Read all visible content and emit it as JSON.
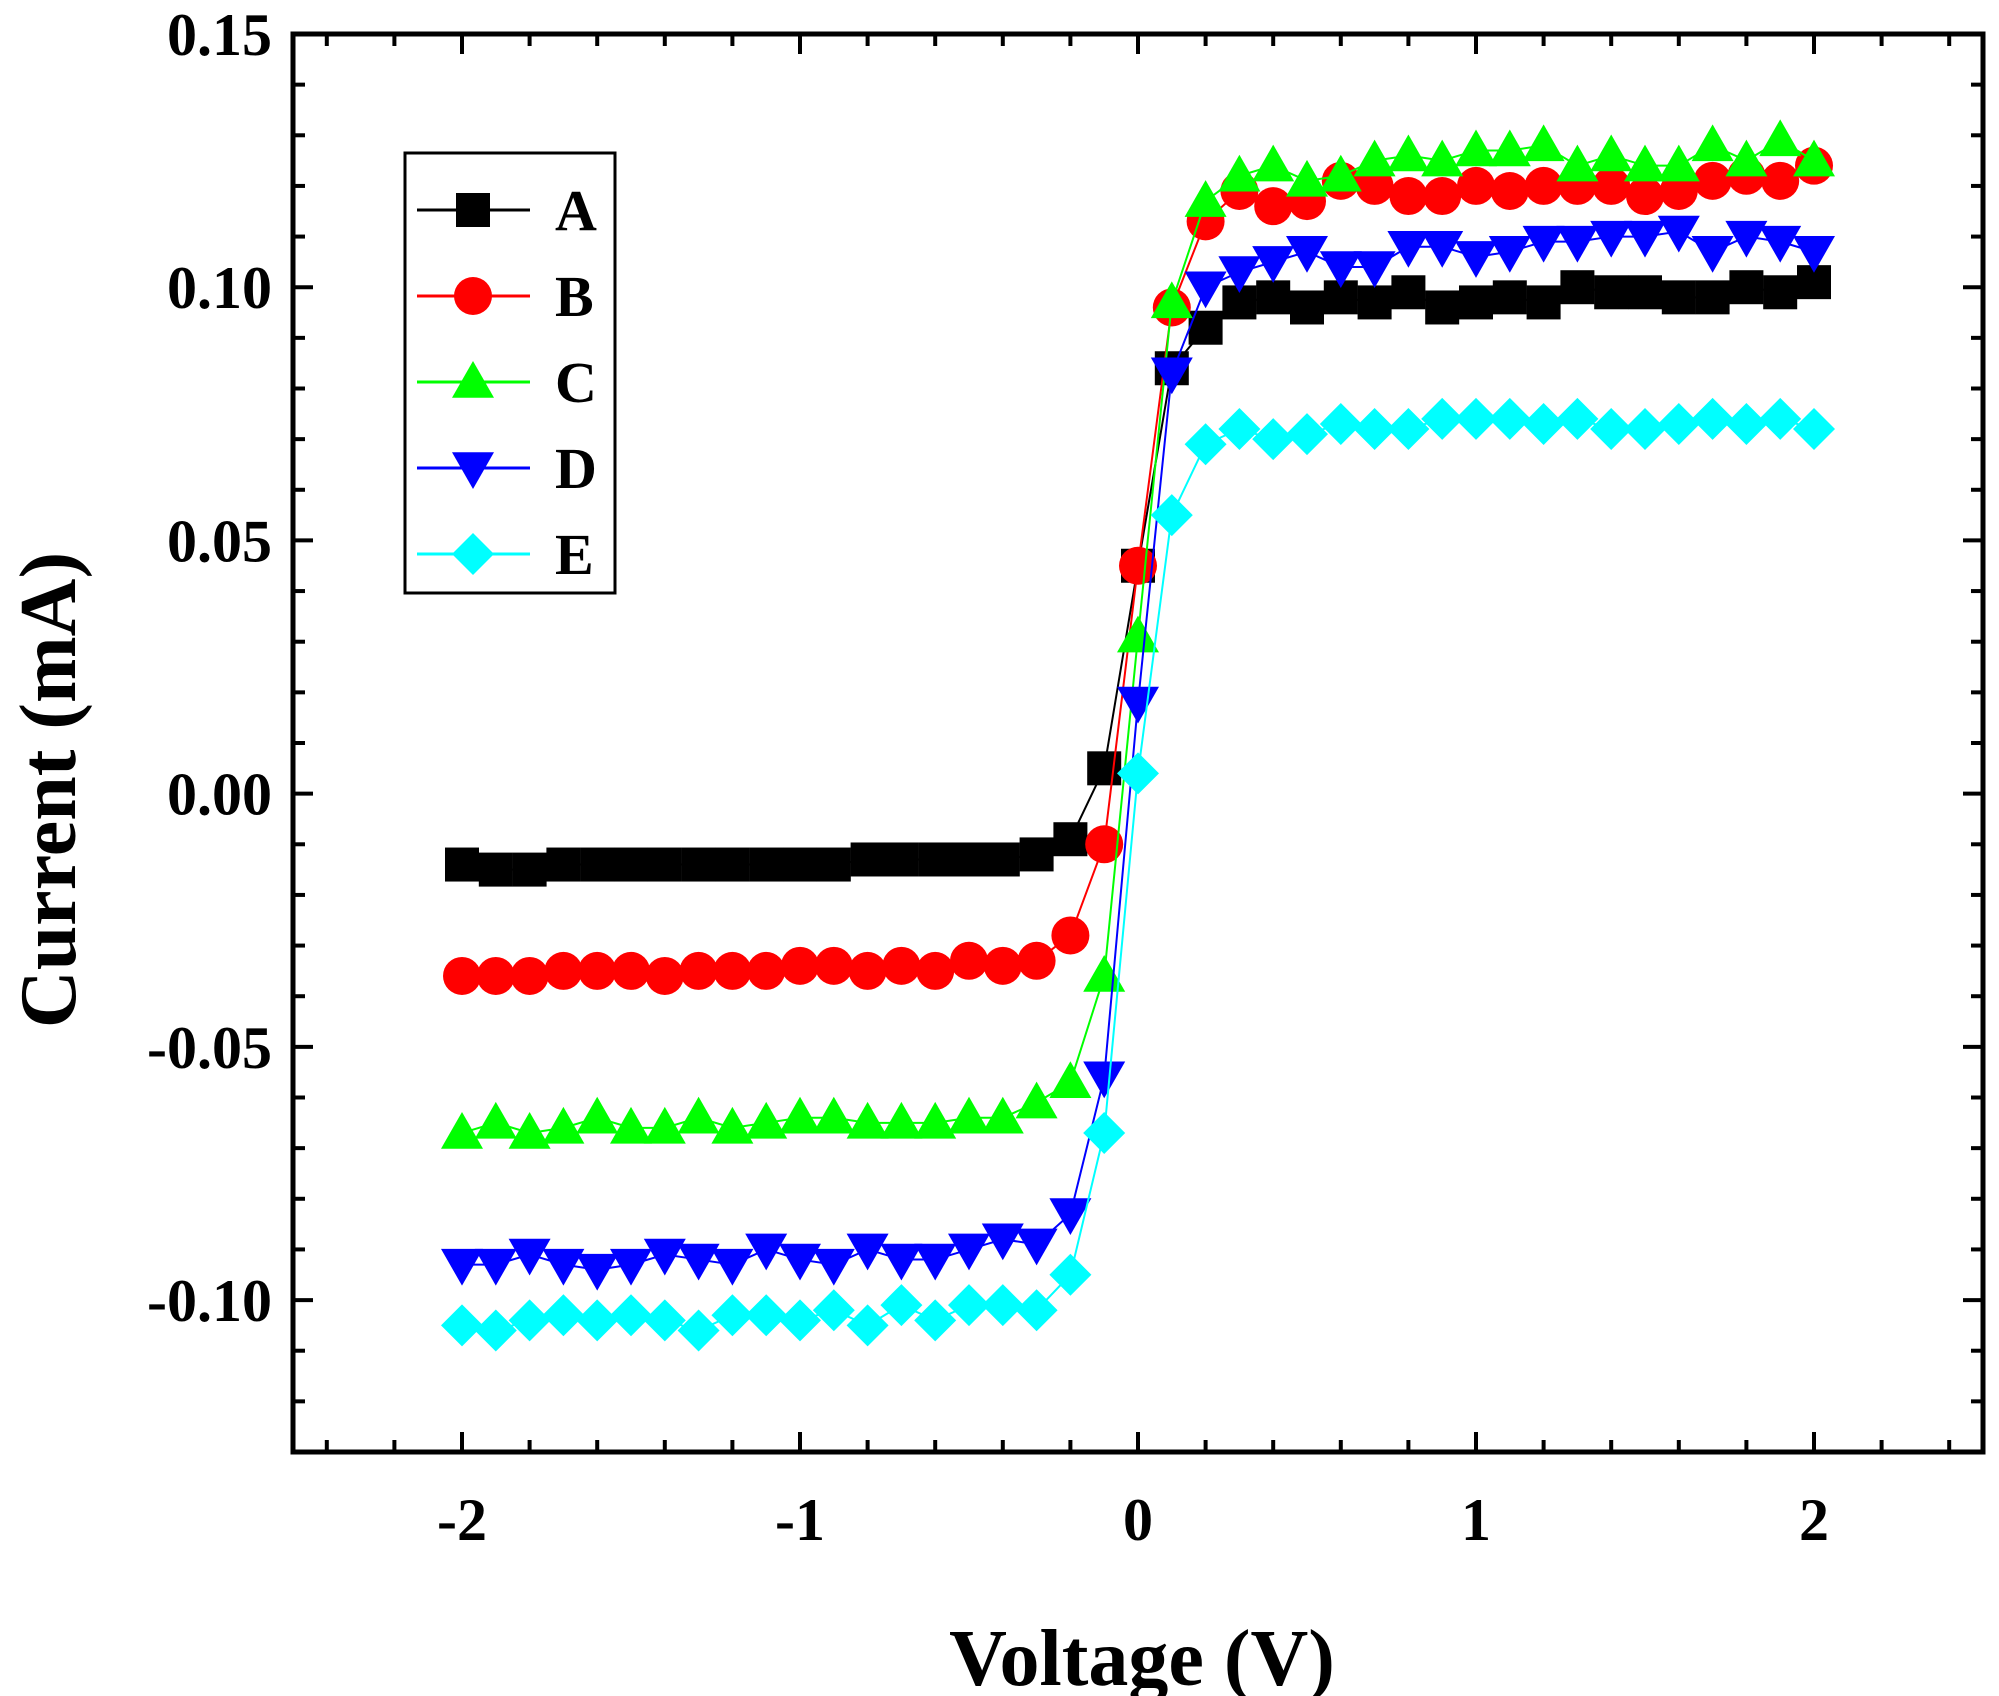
{
  "chart_data": {
    "type": "scatter",
    "title": "",
    "xlabel": "Voltage (V)",
    "ylabel": "Current (mA)",
    "xlim": [
      -2.5,
      2.5
    ],
    "ylim": [
      -0.13,
      0.15
    ],
    "xticks": [
      -2,
      -1,
      0,
      1,
      2
    ],
    "xtick_labels": [
      "-2",
      "-1",
      "0",
      "1",
      "2"
    ],
    "yticks": [
      -0.1,
      -0.05,
      0.0,
      0.05,
      0.1,
      0.15
    ],
    "ytick_labels": [
      "-0.10",
      "-0.05",
      "0.00",
      "0.05",
      "0.10",
      "0.15"
    ],
    "legend_position": "top-left",
    "series": [
      {
        "name": "A",
        "color": "#000000",
        "marker": "square",
        "x": [
          -2,
          -1.9,
          -1.8,
          -1.7,
          -1.6,
          -1.5,
          -1.4,
          -1.3,
          -1.2,
          -1.1,
          -1,
          -0.9,
          -0.8,
          -0.7,
          -0.6,
          -0.5,
          -0.4,
          -0.3,
          -0.2,
          -0.1,
          0,
          0.1,
          0.2,
          0.3,
          0.4,
          0.5,
          0.6,
          0.7,
          0.8,
          0.9,
          1,
          1.1,
          1.2,
          1.3,
          1.4,
          1.5,
          1.6,
          1.7,
          1.8,
          1.9,
          2
        ],
        "y": [
          -0.014,
          -0.015,
          -0.015,
          -0.014,
          -0.014,
          -0.014,
          -0.014,
          -0.014,
          -0.014,
          -0.014,
          -0.014,
          -0.014,
          -0.013,
          -0.013,
          -0.013,
          -0.013,
          -0.013,
          -0.012,
          -0.009,
          0.005,
          0.045,
          0.084,
          0.092,
          0.097,
          0.098,
          0.096,
          0.098,
          0.097,
          0.099,
          0.096,
          0.097,
          0.098,
          0.097,
          0.1,
          0.099,
          0.099,
          0.098,
          0.098,
          0.1,
          0.099,
          0.101
        ]
      },
      {
        "name": "B",
        "color": "#ff0000",
        "marker": "circle",
        "x": [
          -2,
          -1.9,
          -1.8,
          -1.7,
          -1.6,
          -1.5,
          -1.4,
          -1.3,
          -1.2,
          -1.1,
          -1,
          -0.9,
          -0.8,
          -0.7,
          -0.6,
          -0.5,
          -0.4,
          -0.3,
          -0.2,
          -0.1,
          0,
          0.1,
          0.2,
          0.3,
          0.4,
          0.5,
          0.6,
          0.7,
          0.8,
          0.9,
          1,
          1.1,
          1.2,
          1.3,
          1.4,
          1.5,
          1.6,
          1.7,
          1.8,
          1.9,
          2
        ],
        "y": [
          -0.036,
          -0.036,
          -0.036,
          -0.035,
          -0.035,
          -0.035,
          -0.036,
          -0.035,
          -0.035,
          -0.035,
          -0.034,
          -0.034,
          -0.035,
          -0.034,
          -0.035,
          -0.033,
          -0.034,
          -0.033,
          -0.028,
          -0.01,
          0.045,
          0.096,
          0.113,
          0.119,
          0.116,
          0.117,
          0.121,
          0.12,
          0.118,
          0.118,
          0.12,
          0.119,
          0.12,
          0.12,
          0.12,
          0.118,
          0.119,
          0.121,
          0.122,
          0.121,
          0.124
        ]
      },
      {
        "name": "C",
        "color": "#00ff00",
        "marker": "triangle-up",
        "x": [
          -2,
          -1.9,
          -1.8,
          -1.7,
          -1.6,
          -1.5,
          -1.4,
          -1.3,
          -1.2,
          -1.1,
          -1,
          -0.9,
          -0.8,
          -0.7,
          -0.6,
          -0.5,
          -0.4,
          -0.3,
          -0.2,
          -0.1,
          0,
          0.1,
          0.2,
          0.3,
          0.4,
          0.5,
          0.6,
          0.7,
          0.8,
          0.9,
          1,
          1.1,
          1.2,
          1.3,
          1.4,
          1.5,
          1.6,
          1.7,
          1.8,
          1.9,
          2
        ],
        "y": [
          -0.067,
          -0.065,
          -0.067,
          -0.066,
          -0.064,
          -0.066,
          -0.066,
          -0.064,
          -0.066,
          -0.065,
          -0.064,
          -0.064,
          -0.065,
          -0.065,
          -0.065,
          -0.064,
          -0.064,
          -0.061,
          -0.057,
          -0.036,
          0.031,
          0.097,
          0.117,
          0.122,
          0.124,
          0.121,
          0.122,
          0.125,
          0.126,
          0.125,
          0.127,
          0.127,
          0.128,
          0.124,
          0.126,
          0.124,
          0.124,
          0.128,
          0.125,
          0.129,
          0.125
        ]
      },
      {
        "name": "D",
        "color": "#0000ff",
        "marker": "triangle-down",
        "x": [
          -2,
          -1.9,
          -1.8,
          -1.7,
          -1.6,
          -1.5,
          -1.4,
          -1.3,
          -1.2,
          -1.1,
          -1,
          -0.9,
          -0.8,
          -0.7,
          -0.6,
          -0.5,
          -0.4,
          -0.3,
          -0.2,
          -0.1,
          0,
          0.1,
          0.2,
          0.3,
          0.4,
          0.5,
          0.6,
          0.7,
          0.8,
          0.9,
          1,
          1.1,
          1.2,
          1.3,
          1.4,
          1.5,
          1.6,
          1.7,
          1.8,
          1.9,
          2
        ],
        "y": [
          -0.093,
          -0.093,
          -0.091,
          -0.093,
          -0.094,
          -0.093,
          -0.091,
          -0.092,
          -0.093,
          -0.09,
          -0.092,
          -0.093,
          -0.09,
          -0.092,
          -0.092,
          -0.09,
          -0.088,
          -0.089,
          -0.083,
          -0.056,
          0.018,
          0.083,
          0.1,
          0.103,
          0.105,
          0.107,
          0.104,
          0.104,
          0.108,
          0.108,
          0.106,
          0.107,
          0.109,
          0.109,
          0.11,
          0.11,
          0.111,
          0.107,
          0.11,
          0.109,
          0.107
        ]
      },
      {
        "name": "E",
        "color": "#00ffff",
        "marker": "diamond",
        "x": [
          -2,
          -1.9,
          -1.8,
          -1.7,
          -1.6,
          -1.5,
          -1.4,
          -1.3,
          -1.2,
          -1.1,
          -1,
          -0.9,
          -0.8,
          -0.7,
          -0.6,
          -0.5,
          -0.4,
          -0.3,
          -0.2,
          -0.1,
          0,
          0.1,
          0.2,
          0.3,
          0.4,
          0.5,
          0.6,
          0.7,
          0.8,
          0.9,
          1,
          1.1,
          1.2,
          1.3,
          1.4,
          1.5,
          1.6,
          1.7,
          1.8,
          1.9,
          2
        ],
        "y": [
          -0.105,
          -0.106,
          -0.104,
          -0.103,
          -0.104,
          -0.103,
          -0.104,
          -0.106,
          -0.103,
          -0.103,
          -0.104,
          -0.102,
          -0.105,
          -0.101,
          -0.104,
          -0.101,
          -0.101,
          -0.102,
          -0.095,
          -0.067,
          0.004,
          0.055,
          0.069,
          0.072,
          0.07,
          0.071,
          0.073,
          0.072,
          0.072,
          0.074,
          0.074,
          0.074,
          0.073,
          0.074,
          0.072,
          0.072,
          0.073,
          0.074,
          0.073,
          0.074,
          0.072
        ]
      }
    ]
  }
}
